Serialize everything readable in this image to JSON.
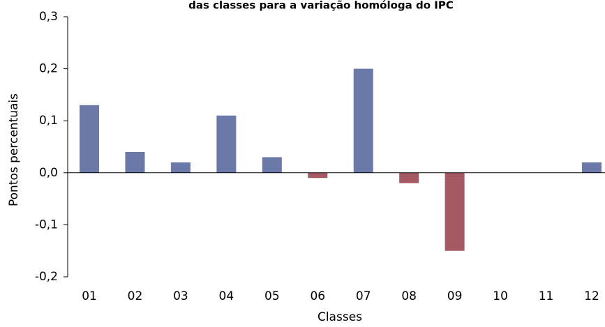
{
  "chart_data": {
    "type": "bar",
    "title": "das classes para a variação homóloga do IPC",
    "x_label": "Classes",
    "y_label": "Pontos percentuais",
    "categories": [
      "01",
      "02",
      "03",
      "04",
      "05",
      "06",
      "07",
      "08",
      "09",
      "10",
      "11",
      "12"
    ],
    "values": [
      0.13,
      0.04,
      0.02,
      0.11,
      0.03,
      -0.01,
      0.2,
      -0.02,
      -0.15,
      0,
      0,
      0.02
    ],
    "color_positive": "#6b79a8",
    "color_negative": "#a55a63",
    "ylim": [
      -0.2,
      0.3
    ],
    "yticks": [
      {
        "value": -0.2,
        "label": "-0,2"
      },
      {
        "value": -0.1,
        "label": "-0,1"
      },
      {
        "value": 0,
        "label": "0,0"
      },
      {
        "value": 0.1,
        "label": "0,1"
      },
      {
        "value": 0.2,
        "label": "0,2"
      },
      {
        "value": 0.3,
        "label": "0,3"
      }
    ],
    "grid": false
  }
}
